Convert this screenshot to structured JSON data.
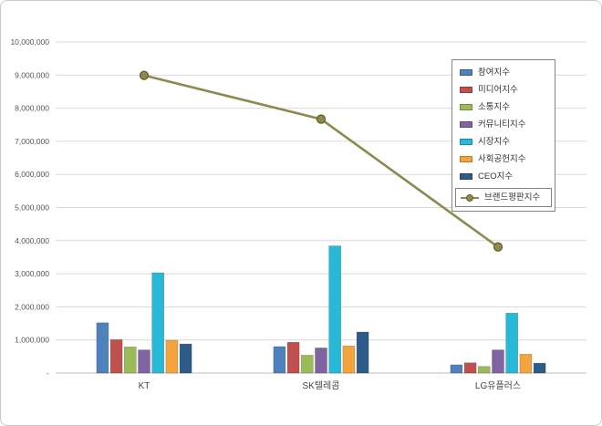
{
  "chart_data": {
    "type": "bar",
    "subtype": "grouped-bar-with-line-overlay",
    "title": "",
    "xlabel": "",
    "ylabel": "",
    "grid": true,
    "legend_position": "right-top",
    "categories": [
      "KT",
      "SK텔레콤",
      "LG유플러스"
    ],
    "series": [
      {
        "name": "참여지수",
        "color": "#4F81BD",
        "values": [
          1520000,
          800000,
          250000
        ]
      },
      {
        "name": "미디어지수",
        "color": "#C0504D",
        "values": [
          1010000,
          930000,
          310000
        ]
      },
      {
        "name": "소통지수",
        "color": "#9BBB59",
        "values": [
          790000,
          540000,
          200000
        ]
      },
      {
        "name": "커뮤니티지수",
        "color": "#8064A2",
        "values": [
          700000,
          760000,
          700000
        ]
      },
      {
        "name": "시장지수",
        "color": "#29B9D8",
        "values": [
          3030000,
          3840000,
          1810000
        ]
      },
      {
        "name": "사회공헌지수",
        "color": "#F3A43C",
        "values": [
          990000,
          820000,
          570000
        ]
      },
      {
        "name": "CEO지수",
        "color": "#2E5C8A",
        "values": [
          880000,
          1240000,
          300000
        ]
      }
    ],
    "line_series": {
      "name": "브랜드평판지수",
      "color": "#8C8A4E",
      "marker_outline": "#64622f",
      "values": [
        8990000,
        7670000,
        3810000
      ]
    },
    "y_axis": {
      "min": 0,
      "max": 10000000,
      "step": 1000000,
      "tick_labels": [
        "-",
        "1,000,000",
        "2,000,000",
        "3,000,000",
        "4,000,000",
        "5,000,000",
        "6,000,000",
        "7,000,000",
        "8,000,000",
        "9,000,000",
        "10,000,000"
      ]
    },
    "gridline_color": "#d9d9d9",
    "axis_line_color": "#bdbdbd",
    "tick_label_color": "#555555",
    "category_label_color": "#444444"
  }
}
